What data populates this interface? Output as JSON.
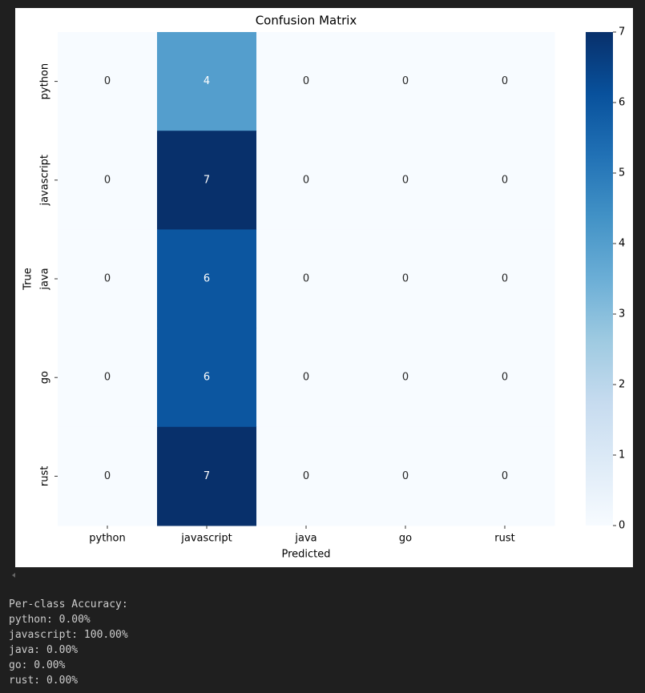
{
  "chart_data": {
    "type": "heatmap",
    "title": "Confusion Matrix",
    "x_label": "Predicted",
    "y_label": "True",
    "x_categories": [
      "python",
      "javascript",
      "java",
      "go",
      "rust"
    ],
    "y_categories": [
      "python",
      "javascript",
      "java",
      "go",
      "rust"
    ],
    "values": [
      [
        0,
        4,
        0,
        0,
        0
      ],
      [
        0,
        7,
        0,
        0,
        0
      ],
      [
        0,
        6,
        0,
        0,
        0
      ],
      [
        0,
        6,
        0,
        0,
        0
      ],
      [
        0,
        7,
        0,
        0,
        0
      ]
    ],
    "colormap": "Blues",
    "clim": [
      0,
      7
    ],
    "cticks": [
      0,
      1,
      2,
      3,
      4,
      5,
      6,
      7
    ]
  },
  "output": {
    "heading": "Per-class Accuracy:",
    "lines": [
      "python: 0.00%",
      "javascript: 100.00%",
      "java: 0.00%",
      "go: 0.00%",
      "rust: 0.00%"
    ]
  }
}
